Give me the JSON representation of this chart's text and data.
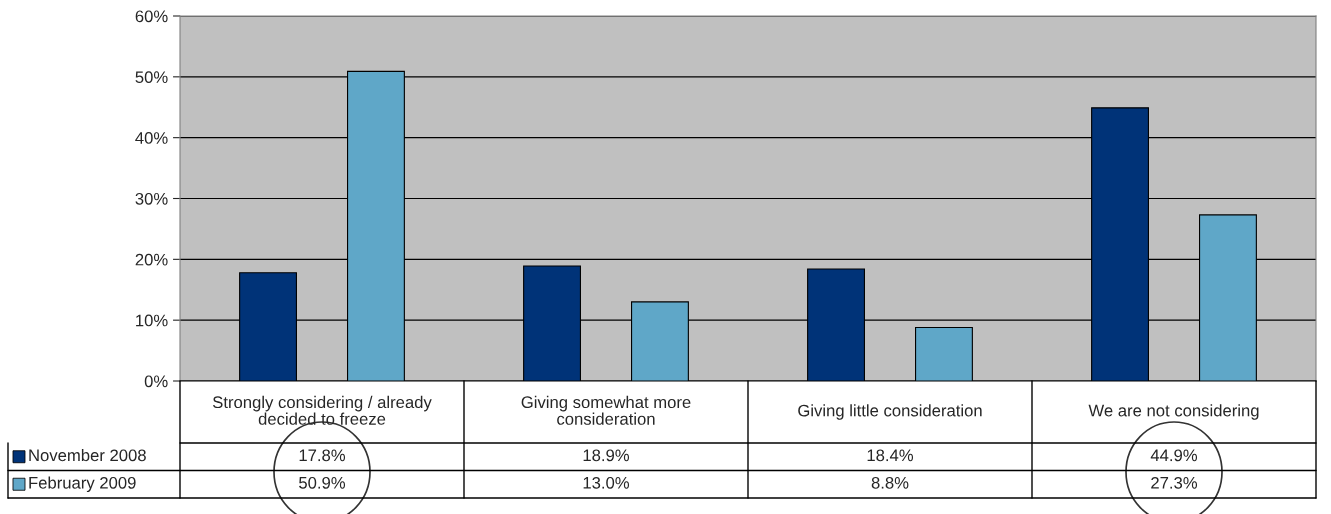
{
  "chart_data": {
    "type": "bar",
    "categories": [
      "Strongly considering / already\ndecided to freeze",
      "Giving somewhat more\nconsideration",
      "Giving little consideration",
      "We are not considering"
    ],
    "series": [
      {
        "name": "November 2008",
        "color": "#003378",
        "values": [
          17.8,
          18.9,
          18.4,
          44.9
        ],
        "value_labels": [
          "17.8%",
          "18.9%",
          "18.4%",
          "44.9%"
        ]
      },
      {
        "name": "February 2009",
        "color": "#5fa7c8",
        "values": [
          50.9,
          13.0,
          8.8,
          27.3
        ],
        "value_labels": [
          "50.9%",
          "13.0%",
          "8.8%",
          "27.3%"
        ]
      }
    ],
    "ylim": [
      0,
      60
    ],
    "yticks": [
      {
        "value": 0,
        "label": "0%"
      },
      {
        "value": 10,
        "label": "10%"
      },
      {
        "value": 20,
        "label": "20%"
      },
      {
        "value": 30,
        "label": "30%"
      },
      {
        "value": 40,
        "label": "40%"
      },
      {
        "value": 50,
        "label": "50%"
      },
      {
        "value": 60,
        "label": "60%"
      }
    ],
    "grid": "y",
    "legend": "bottom left"
  }
}
